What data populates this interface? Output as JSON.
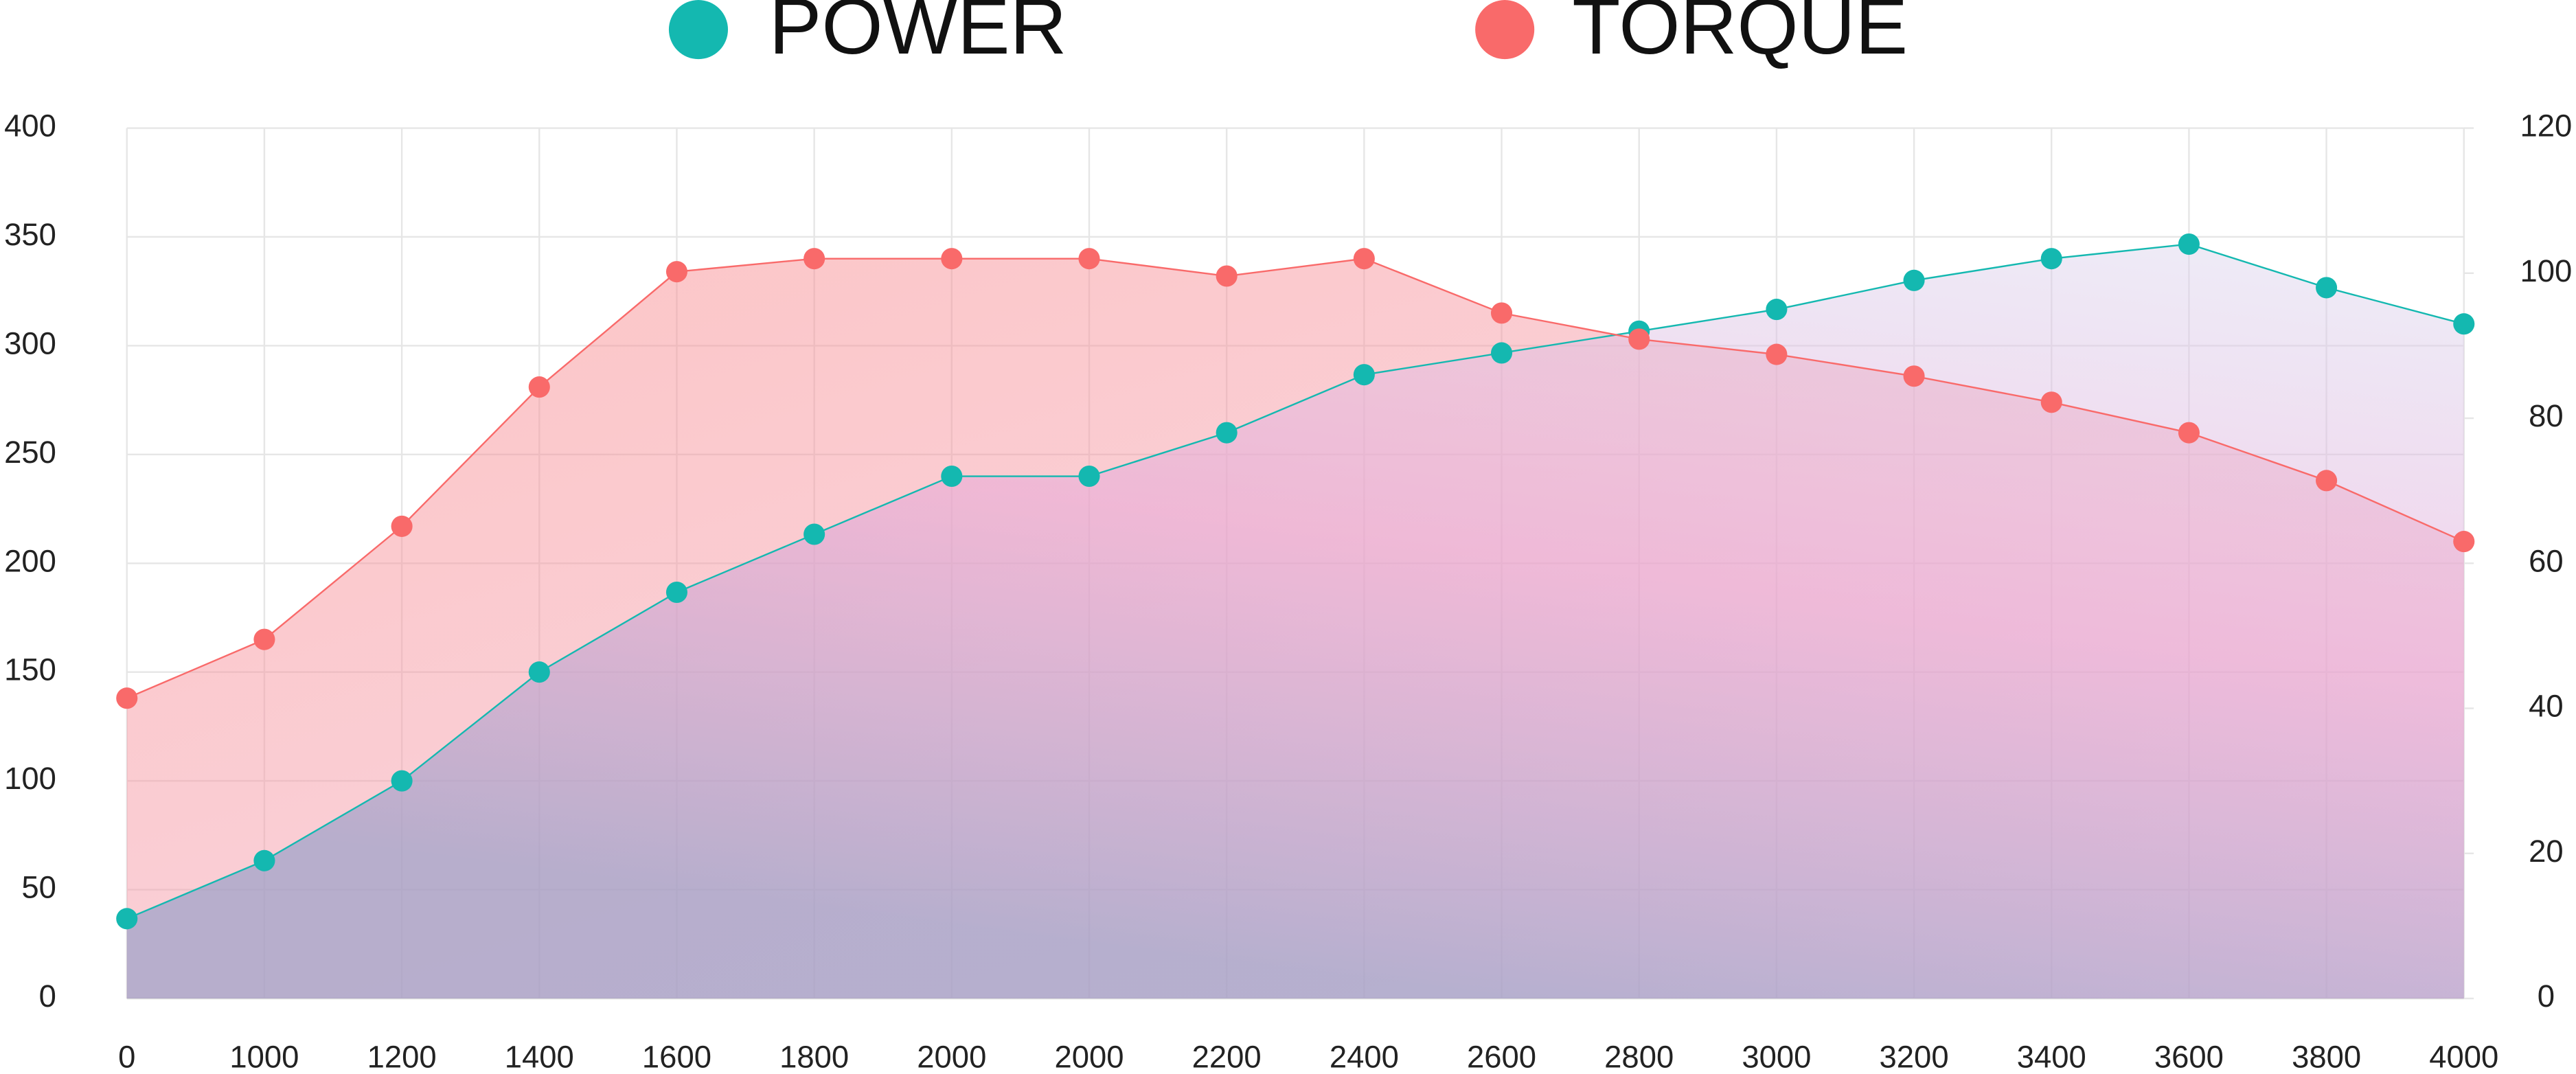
{
  "chart_data": {
    "type": "line",
    "categories": [
      "0",
      "1000",
      "1200",
      "1400",
      "1600",
      "1800",
      "2000",
      "2000",
      "2200",
      "2400",
      "2600",
      "2800",
      "3000",
      "3200",
      "3400",
      "3600",
      "3800",
      "4000"
    ],
    "series": [
      {
        "name": "POWER",
        "color": "#14b8b0",
        "axis": "y2",
        "values": [
          11,
          19,
          30,
          45,
          56,
          64,
          72,
          72,
          78,
          86,
          89,
          92,
          95,
          99,
          102,
          104,
          98,
          93
        ]
      },
      {
        "name": "TORQUE",
        "color": "#f96a6a",
        "values": [
          138,
          165,
          217,
          281,
          334,
          340,
          340,
          340,
          332,
          340,
          315,
          303,
          296,
          286,
          274,
          260,
          238,
          210
        ]
      }
    ],
    "ylim": [
      0,
      400
    ],
    "yticks": [
      0,
      50,
      100,
      150,
      200,
      250,
      300,
      350,
      400
    ],
    "y2lim": [
      0,
      120
    ],
    "y2ticks": [
      0,
      20,
      40,
      60,
      80,
      100,
      120
    ],
    "grid": true,
    "legend": "top"
  }
}
